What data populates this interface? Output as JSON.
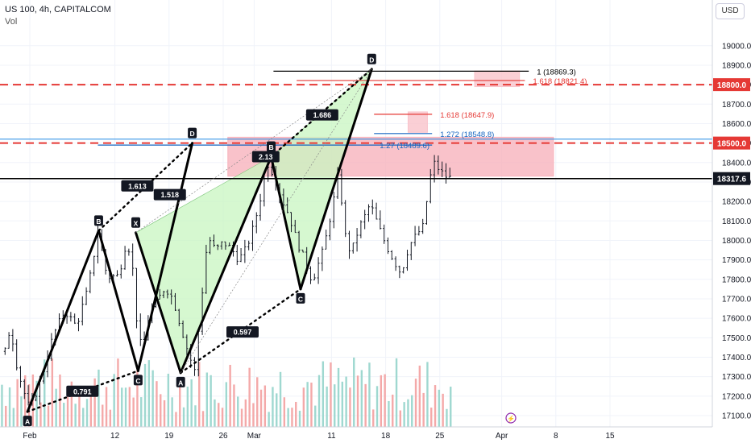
{
  "header": {
    "symbol_line": "US 100, 4h, CAPITALCOM",
    "volume_label": "Vol"
  },
  "currency_button": "USD",
  "chart_data": {
    "type": "candlestick",
    "symbol": "US 100",
    "interval": "4h",
    "broker": "CAPITALCOM",
    "ylim": [
      17060,
      19140
    ],
    "y_ticks": [
      17100,
      17200,
      17300,
      17400,
      17500,
      17600,
      17700,
      17800,
      17900,
      18000,
      18100,
      18200,
      18300,
      18400,
      18500,
      18600,
      18700,
      18800,
      18900,
      19000
    ],
    "x_ticks": [
      {
        "label": "Feb",
        "day": 0
      },
      {
        "label": "12",
        "day": 11
      },
      {
        "label": "19",
        "day": 18
      },
      {
        "label": "26",
        "day": 25
      },
      {
        "label": "Mar",
        "day": 29
      },
      {
        "label": "11",
        "day": 39
      },
      {
        "label": "18",
        "day": 46
      },
      {
        "label": "25",
        "day": 53
      },
      {
        "label": "Apr",
        "day": 61
      },
      {
        "label": "8",
        "day": 68
      },
      {
        "label": "15",
        "day": 75
      }
    ],
    "last_candle_day": 54.4,
    "price_path": [
      [
        -3.2,
        17430
      ],
      [
        -2.5,
        17560
      ],
      [
        -1.8,
        17380
      ],
      [
        -1.0,
        17250
      ],
      [
        0.0,
        17130
      ],
      [
        1.5,
        17290
      ],
      [
        3.0,
        17510
      ],
      [
        4.5,
        17640
      ],
      [
        6.0,
        17560
      ],
      [
        7.5,
        17750
      ],
      [
        8.8,
        18040
      ],
      [
        10.0,
        17810
      ],
      [
        11.5,
        17820
      ],
      [
        12.5,
        18000
      ],
      [
        13.2,
        17900
      ],
      [
        13.8,
        17600
      ],
      [
        14.5,
        17420
      ],
      [
        15.5,
        17640
      ],
      [
        16.5,
        17690
      ],
      [
        17.5,
        17760
      ],
      [
        18.5,
        17700
      ],
      [
        19.5,
        17560
      ],
      [
        20.5,
        17420
      ],
      [
        21.3,
        17330
      ],
      [
        22.3,
        17740
      ],
      [
        23.0,
        18020
      ],
      [
        24.0,
        17950
      ],
      [
        25.0,
        17990
      ],
      [
        26.0,
        17960
      ],
      [
        27.0,
        17900
      ],
      [
        28.0,
        17960
      ],
      [
        29.0,
        18080
      ],
      [
        30.0,
        18250
      ],
      [
        30.7,
        18400
      ],
      [
        31.5,
        18340
      ],
      [
        32.5,
        18220
      ],
      [
        33.5,
        18130
      ],
      [
        34.5,
        18000
      ],
      [
        35.5,
        17900
      ],
      [
        36.5,
        17790
      ],
      [
        37.3,
        17880
      ],
      [
        38.0,
        17960
      ],
      [
        39.0,
        18150
      ],
      [
        40.0,
        18360
      ],
      [
        40.6,
        18050
      ],
      [
        41.5,
        17930
      ],
      [
        42.5,
        18060
      ],
      [
        43.5,
        18140
      ],
      [
        44.0,
        18190
      ],
      [
        45.0,
        18080
      ],
      [
        46.0,
        17980
      ],
      [
        47.0,
        17900
      ],
      [
        48.0,
        17830
      ],
      [
        49.0,
        17970
      ],
      [
        50.0,
        18030
      ],
      [
        51.0,
        18080
      ],
      [
        51.5,
        18280
      ],
      [
        52.2,
        18400
      ],
      [
        53.0,
        18360
      ],
      [
        53.7,
        18330
      ],
      [
        54.4,
        18320
      ]
    ],
    "volume_max": 17170,
    "harmonic_pattern_1": {
      "points": [
        {
          "label": "A",
          "day": -0.3,
          "price": 17120
        },
        {
          "label": "B",
          "day": 8.9,
          "price": 18050
        },
        {
          "label": "C",
          "day": 14.0,
          "price": 17330
        },
        {
          "label": "D",
          "day": 21.0,
          "price": 18500
        }
      ],
      "ratios": [
        {
          "value": "0.791",
          "day": 6.8,
          "price": 17225
        },
        {
          "value": "1.613",
          "day": 13.9,
          "price": 18280
        },
        {
          "value": "1.518",
          "day": 18.1,
          "price": 18235
        }
      ]
    },
    "harmonic_pattern_2": {
      "points": [
        {
          "label": "X",
          "day": 13.7,
          "price": 18040
        },
        {
          "label": "A",
          "day": 19.5,
          "price": 17320
        },
        {
          "label": "B",
          "day": 31.2,
          "price": 18430
        },
        {
          "label": "C",
          "day": 35.0,
          "price": 17750
        },
        {
          "label": "D",
          "day": 44.2,
          "price": 18880
        }
      ],
      "ratios": [
        {
          "value": "1.686",
          "day": 37.8,
          "price": 18645
        },
        {
          "value": "0.597",
          "day": 27.5,
          "price": 17530
        },
        {
          "value": "2.13",
          "day": 30.5,
          "price": 18430
        }
      ]
    },
    "horizontal_levels": [
      {
        "price": 18800,
        "label": "18800.0",
        "style": "dashed",
        "color": "#e53935"
      },
      {
        "price": 18500,
        "label": "18500.0",
        "style": "dashed",
        "color": "#e53935"
      },
      {
        "price": 18317.6,
        "label": "18317.6",
        "style": "solid",
        "color": "#000000"
      }
    ],
    "blue_level": {
      "price": 18520
    },
    "fib_levels": [
      {
        "label": "1 (18869.3)",
        "price": 18869.3,
        "color": "#000000",
        "from_day": 31.5,
        "to_day": 64.5
      },
      {
        "label": "1.618 (18821.4)",
        "price": 18821.4,
        "color": "#e53935",
        "from_day": 34.5,
        "to_day": 64.0
      },
      {
        "label": "1.618 (18647.9)",
        "price": 18647.9,
        "color": "#e53935",
        "from_day": 44.5,
        "to_day": 52.0
      },
      {
        "label": "1.272 (18548.8)",
        "price": 18548.8,
        "color": "#1565c0",
        "from_day": 44.5,
        "to_day": 52.0
      },
      {
        "label": "1.27 (18489.6)",
        "price": 18489.6,
        "color": "#1565c0",
        "from_day": 8.8,
        "to_day": 52.0
      }
    ],
    "zones": [
      {
        "from_day": 25.6,
        "to_day": 67.7,
        "top": 18530,
        "bottom": 18330,
        "color": "#f7b3bd"
      },
      {
        "from_day": 48.9,
        "to_day": 51.4,
        "top": 18660,
        "bottom": 18555,
        "color": "#f9c3cb"
      },
      {
        "from_day": 57.5,
        "to_day": 63.3,
        "top": 18870,
        "bottom": 18790,
        "color": "#f9c3cb"
      }
    ]
  }
}
